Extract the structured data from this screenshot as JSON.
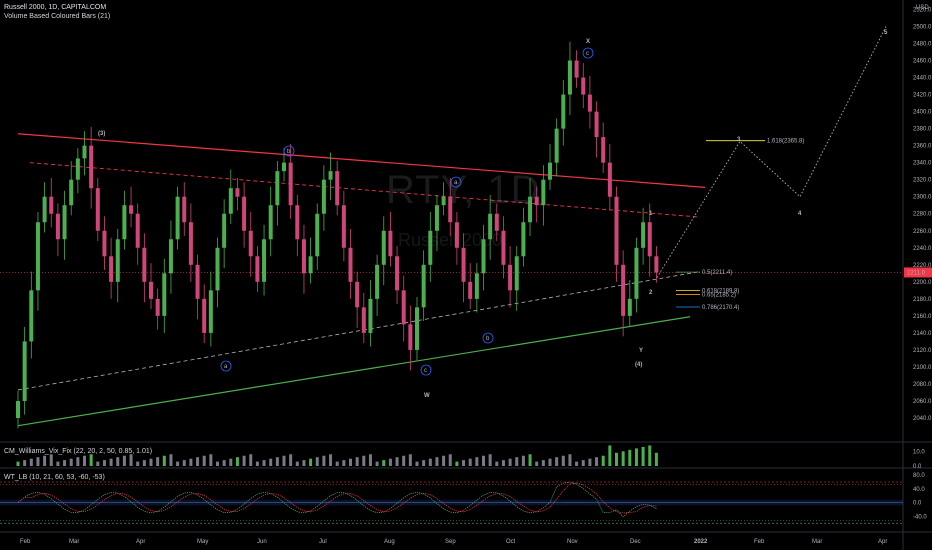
{
  "header": {
    "symbol_line": "Russell 2000, 1D, CAPITALCOM",
    "indicator_line": "Volume Based Coloured Bars (21)",
    "currency": "USD"
  },
  "watermark": {
    "symbol": "RTY, 1D",
    "name": "Russell 2000"
  },
  "indicators": {
    "cm_label": "CM_Williams_Vix_Fix (22, 20, 2, 50, 0.85, 1.01)",
    "wt_label": "WT_LB (10, 21, 60, 53, -60, -53)"
  },
  "price_tag": "2211.0",
  "colors": {
    "up": "#4caf50",
    "down": "#d1467a",
    "bg": "#000000",
    "resistance": "#f23645",
    "support": "#4caf50",
    "wave": "#ffffff",
    "circle": "#2962ff"
  },
  "chart_data": [
    {
      "type": "candlestick",
      "title": "Russell 2000, 1D, CAPITALCOM",
      "xlabel": "",
      "ylabel": "",
      "ylim": [
        2013,
        2517
      ],
      "x_ticks": [
        "Feb",
        "Mar",
        "Apr",
        "May",
        "Jun",
        "Jul",
        "Aug",
        "Sep",
        "Oct",
        "Nov",
        "Dec",
        "2022",
        "Feb",
        "Mar",
        "Apr"
      ],
      "y_ticks": [
        2040,
        2060,
        2080,
        2100,
        2120,
        2140,
        2160,
        2180,
        2200,
        2220,
        2240,
        2260,
        2280,
        2300,
        2320,
        2340,
        2360,
        2380,
        2400,
        2420,
        2440,
        2460,
        2480,
        2500,
        2520
      ],
      "closes": [
        2060,
        2130,
        2190,
        2270,
        2300,
        2280,
        2250,
        2290,
        2320,
        2345,
        2360,
        2310,
        2260,
        2230,
        2200,
        2250,
        2290,
        2280,
        2240,
        2200,
        2180,
        2160,
        2210,
        2250,
        2300,
        2270,
        2220,
        2180,
        2140,
        2190,
        2240,
        2280,
        2310,
        2300,
        2260,
        2230,
        2200,
        2250,
        2290,
        2330,
        2340,
        2290,
        2250,
        2210,
        2230,
        2280,
        2320,
        2330,
        2290,
        2240,
        2200,
        2170,
        2140,
        2180,
        2220,
        2260,
        2230,
        2190,
        2150,
        2120,
        2170,
        2220,
        2260,
        2290,
        2300,
        2270,
        2240,
        2200,
        2180,
        2210,
        2250,
        2280,
        2260,
        2220,
        2190,
        2230,
        2270,
        2300,
        2290,
        2320,
        2340,
        2380,
        2420,
        2460,
        2440,
        2420,
        2400,
        2370,
        2340,
        2300,
        2220,
        2160,
        2180,
        2240,
        2270,
        2230,
        2211
      ],
      "levels": [
        {
          "label": "1.618(2365.8)",
          "value": 2365.8
        },
        {
          "label": "0.5(2211.4)",
          "value": 2211.4
        },
        {
          "label": "0.618(2189.8)",
          "value": 2189.8
        },
        {
          "label": "0.65(2185.2)",
          "value": 2185.2
        },
        {
          "label": "0.786(2170.4)",
          "value": 2170.4
        }
      ],
      "wave_labels": [
        "(3)",
        "a",
        "b",
        "c",
        "W",
        "a",
        "b",
        "c",
        "X",
        "Y",
        "(4)",
        "1",
        "2",
        "3",
        "4",
        "5"
      ]
    },
    {
      "type": "bar",
      "title": "CM_Williams_Vix_Fix (22, 20, 2, 50, 0.85, 1.01)",
      "y_ticks": [
        10.0,
        0.0
      ],
      "ylim": [
        0,
        15
      ]
    },
    {
      "type": "line",
      "title": "WT_LB (10, 21, 60, 53, -60, -53)",
      "y_ticks": [
        80.0,
        40.0,
        0.0,
        -40.0
      ],
      "ylim": [
        -80,
        95
      ]
    }
  ]
}
